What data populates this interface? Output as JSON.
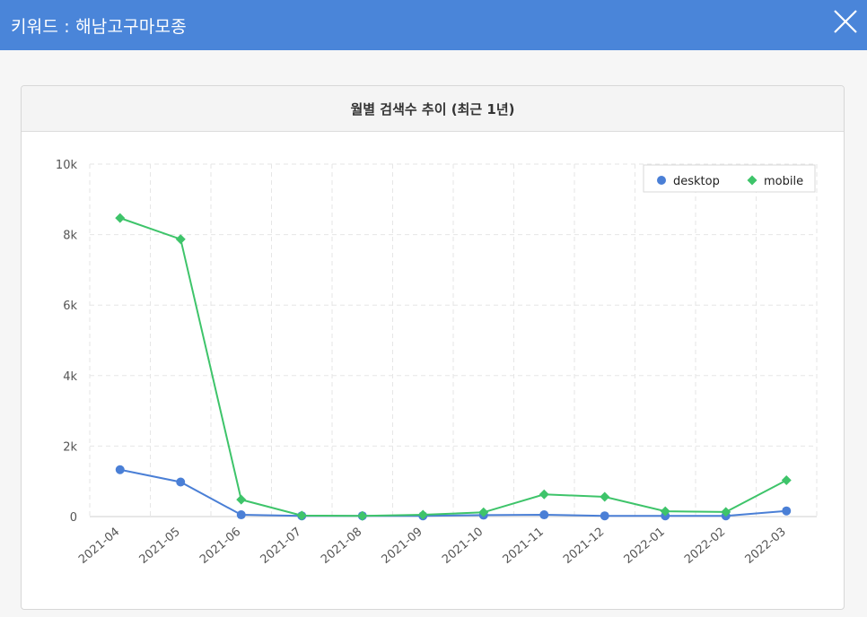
{
  "window": {
    "title": "키워드 : 해남고구마모종",
    "close_icon": "close-icon"
  },
  "panel": {
    "title": "월별 검색수 추이 (최근 1년)"
  },
  "chart_data": {
    "type": "line",
    "title": "월별 검색수 추이 (최근 1년)",
    "categories": [
      "2021-04",
      "2021-05",
      "2021-06",
      "2021-07",
      "2021-08",
      "2021-09",
      "2021-10",
      "2021-11",
      "2021-12",
      "2022-01",
      "2022-02",
      "2022-03"
    ],
    "series": [
      {
        "name": "desktop",
        "color": "#4a7fd6",
        "marker": "circle",
        "values": [
          1330,
          980,
          50,
          20,
          20,
          20,
          40,
          50,
          20,
          20,
          20,
          160
        ]
      },
      {
        "name": "mobile",
        "color": "#3ec46a",
        "marker": "diamond",
        "values": [
          8470,
          7870,
          480,
          30,
          20,
          50,
          120,
          630,
          560,
          150,
          130,
          1030
        ]
      }
    ],
    "ylim": [
      0,
      10000
    ],
    "yticks": [
      {
        "value": 0,
        "label": "0"
      },
      {
        "value": 2000,
        "label": "2k"
      },
      {
        "value": 4000,
        "label": "4k"
      },
      {
        "value": 6000,
        "label": "6k"
      },
      {
        "value": 8000,
        "label": "8k"
      },
      {
        "value": 10000,
        "label": "10k"
      }
    ],
    "grid": true,
    "legend_position": "top-right"
  }
}
